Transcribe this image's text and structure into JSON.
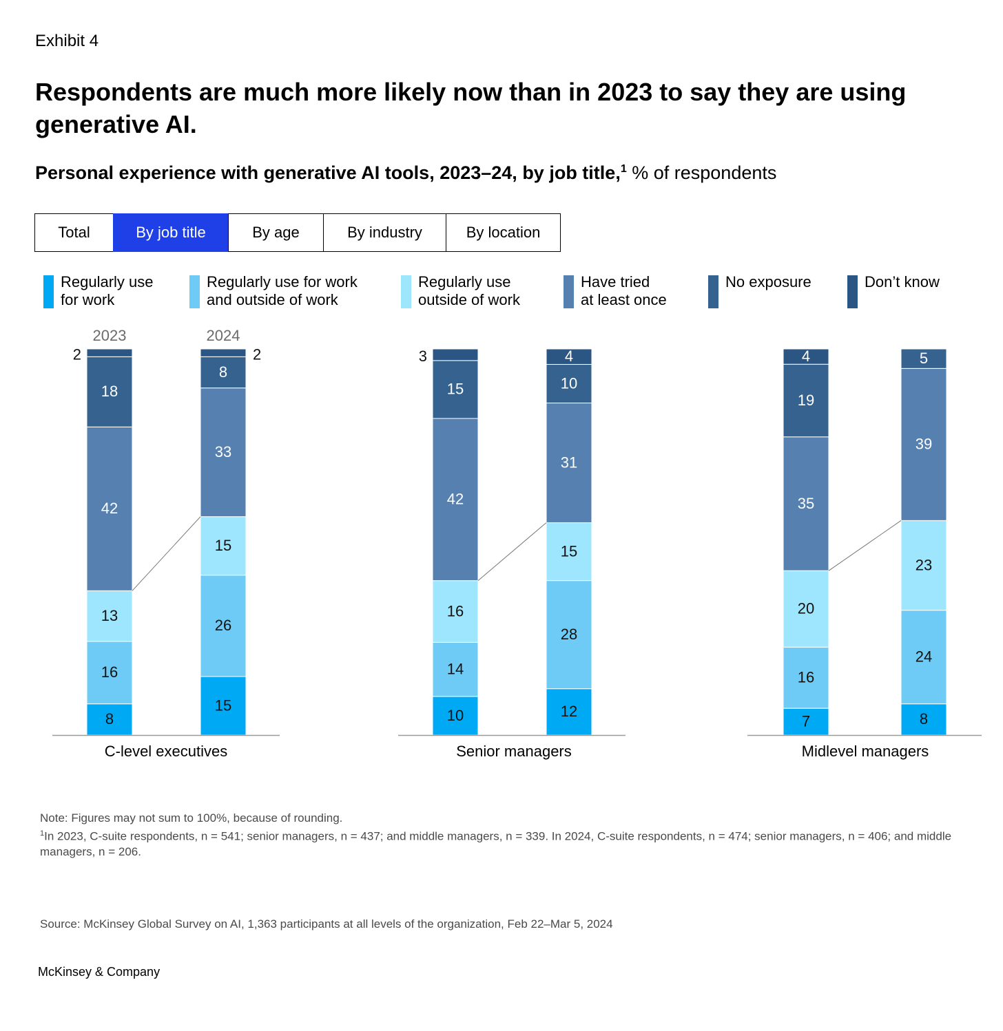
{
  "exhibit": "Exhibit 4",
  "title": "Respondents are much more likely now than in 2023 to say they are using generative AI.",
  "subtitle": {
    "bold": "Personal experience with generative AI tools, 2023–24, by job title,",
    "footnote_mark": "1",
    "rest": " % of respondents"
  },
  "tabs": [
    "Total",
    "By job title",
    "By age",
    "By industry",
    "By location"
  ],
  "active_tab": "By job title",
  "legend": [
    {
      "label": "Regularly use\nfor work",
      "color": "#00a9f4"
    },
    {
      "label": "Regularly use for work\nand outside of work",
      "color": "#6ecbf5"
    },
    {
      "label": "Regularly use\noutside of work",
      "color": "#9ee6fd"
    },
    {
      "label": "Have tried\nat least once",
      "color": "#5580b0"
    },
    {
      "label": "No exposure",
      "color": "#36628f"
    },
    {
      "label": "Don’t know",
      "color": "#2b5583"
    }
  ],
  "chart_data": {
    "type": "bar",
    "stacked": true,
    "year_labels": [
      "2023",
      "2024"
    ],
    "series_names": [
      "Regularly use for work",
      "Regularly use for work and outside of work",
      "Regularly use outside of work",
      "Have tried at least once",
      "No exposure",
      "Don’t know"
    ],
    "groups": [
      {
        "name": "C-level executives",
        "bars": [
          {
            "year": "2023",
            "values": [
              8,
              16,
              13,
              42,
              18,
              2
            ]
          },
          {
            "year": "2024",
            "values": [
              15,
              26,
              15,
              33,
              8,
              2
            ]
          }
        ]
      },
      {
        "name": "Senior managers",
        "bars": [
          {
            "year": "2023",
            "values": [
              10,
              14,
              16,
              42,
              15,
              3
            ]
          },
          {
            "year": "2024",
            "values": [
              12,
              28,
              15,
              31,
              10,
              4
            ]
          }
        ]
      },
      {
        "name": "Midlevel managers",
        "bars": [
          {
            "year": "2023",
            "values": [
              7,
              16,
              20,
              35,
              19,
              4
            ]
          },
          {
            "year": "2024",
            "values": [
              8,
              24,
              23,
              39,
              5,
              0
            ]
          }
        ]
      }
    ]
  },
  "note": "Note: Figures may not sum to 100%, because of rounding.",
  "footnote": {
    "mark": "1",
    "text": "In 2023, C-suite respondents, n = 541; senior managers, n = 437; and middle managers, n = 339. In 2024, C-suite respondents, n = 474; senior managers, n = 406; and middle managers, n = 206."
  },
  "source": "Source: McKinsey Global Survey on AI, 1,363 participants at all levels of the organization, Feb 22–Mar 5, 2024",
  "brand": "McKinsey & Company"
}
